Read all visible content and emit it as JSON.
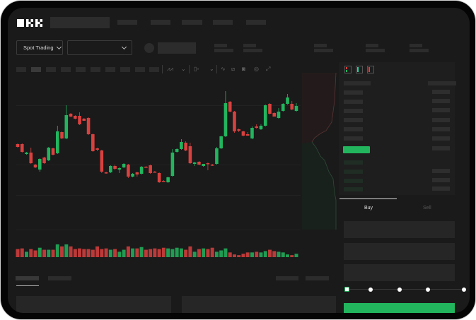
{
  "header": {
    "logo_text": "OKX"
  },
  "toolbar": {
    "market_selector": "Spot Trading"
  },
  "trade_panel": {
    "buy_tab": "Buy",
    "sell_tab": "Sell",
    "active_tab": "Buy",
    "slider_percent": 0
  },
  "colors": {
    "up": "#22b55e",
    "down": "#d9413f",
    "background": "#1a1a1a",
    "placeholder": "#2c2c2c"
  },
  "icons": [
    "logo-okx",
    "chevron-down-icon",
    "order-book-both-icon",
    "order-book-bids-icon",
    "order-book-asks-icon",
    "line-tool-icon",
    "ruler-icon",
    "camera-icon",
    "settings-icon",
    "fullscreen-icon"
  ],
  "chart_data": {
    "type": "candlestick",
    "title": "",
    "xlabel": "",
    "ylabel": "",
    "grid": true,
    "candles_ohlc": [
      [
        97,
        98,
        92,
        93
      ],
      [
        97,
        98,
        85,
        86
      ],
      [
        83,
        86,
        82,
        85
      ],
      [
        85,
        92,
        69,
        70
      ],
      [
        68,
        69,
        63,
        64
      ],
      [
        61,
        77,
        58,
        76
      ],
      [
        78,
        79,
        69,
        70
      ],
      [
        74,
        93,
        73,
        92
      ],
      [
        91,
        92,
        81,
        82
      ],
      [
        84,
        123,
        83,
        115
      ],
      [
        114,
        115,
        104,
        105
      ],
      [
        105,
        152,
        104,
        138
      ],
      [
        140,
        141,
        135,
        136
      ],
      [
        137,
        138,
        132,
        133
      ],
      [
        137,
        142,
        124,
        125
      ],
      [
        133,
        134,
        130,
        130
      ],
      [
        134,
        135,
        110,
        111
      ],
      [
        111,
        112,
        86,
        87
      ],
      [
        91,
        92,
        87,
        89
      ],
      [
        88,
        89,
        56,
        58
      ],
      [
        57,
        58,
        55,
        56
      ],
      [
        57,
        67,
        56,
        66
      ],
      [
        66,
        68,
        60,
        62
      ],
      [
        61,
        64,
        56,
        63
      ],
      [
        64,
        70,
        63,
        69
      ],
      [
        68,
        69,
        49,
        51
      ],
      [
        51,
        56,
        50,
        55
      ],
      [
        57,
        58,
        51,
        54
      ],
      [
        55,
        66,
        54,
        65
      ],
      [
        65,
        66,
        64,
        64
      ],
      [
        67,
        68,
        55,
        56
      ],
      [
        58,
        59,
        57,
        57
      ],
      [
        56,
        57,
        42,
        43
      ],
      [
        45,
        46,
        44,
        44
      ],
      [
        43,
        51,
        42,
        50
      ],
      [
        52,
        90,
        51,
        85
      ],
      [
        86,
        91,
        85,
        90
      ],
      [
        90,
        104,
        89,
        100
      ],
      [
        99,
        101,
        87,
        88
      ],
      [
        94,
        99,
        69,
        70
      ],
      [
        69,
        72,
        66,
        71
      ],
      [
        72,
        73,
        67,
        68
      ],
      [
        66,
        69,
        65,
        69
      ],
      [
        70,
        71,
        60,
        69
      ],
      [
        68,
        69,
        66,
        67
      ],
      [
        69,
        93,
        68,
        91
      ],
      [
        91,
        109,
        90,
        108
      ],
      [
        108,
        172,
        107,
        155
      ],
      [
        157,
        158,
        142,
        143
      ],
      [
        143,
        144,
        113,
        115
      ],
      [
        118,
        119,
        114,
        116
      ],
      [
        115,
        116,
        108,
        109
      ],
      [
        111,
        114,
        109,
        109
      ],
      [
        105,
        122,
        104,
        120
      ],
      [
        122,
        125,
        119,
        120
      ],
      [
        118,
        125,
        117,
        123
      ],
      [
        123,
        153,
        122,
        152
      ],
      [
        154,
        155,
        139,
        140
      ],
      [
        141,
        142,
        136,
        136
      ],
      [
        134,
        148,
        133,
        143
      ],
      [
        144,
        155,
        143,
        154
      ],
      [
        154,
        168,
        153,
        163
      ],
      [
        154,
        158,
        145,
        146
      ],
      [
        144,
        155,
        143,
        151
      ]
    ],
    "volumes": [
      12,
      13,
      8,
      12,
      10,
      14,
      11,
      11,
      11,
      19,
      16,
      19,
      16,
      12,
      13,
      12,
      12,
      11,
      16,
      12,
      13,
      11,
      12,
      8,
      11,
      16,
      13,
      13,
      15,
      11,
      12,
      13,
      12,
      14,
      13,
      12,
      14,
      13,
      11,
      16,
      8,
      12,
      13,
      12,
      14,
      8,
      10,
      13,
      7,
      4,
      3,
      5,
      7,
      7,
      8,
      7,
      9,
      11,
      9,
      8,
      7,
      4,
      3,
      5
    ]
  }
}
